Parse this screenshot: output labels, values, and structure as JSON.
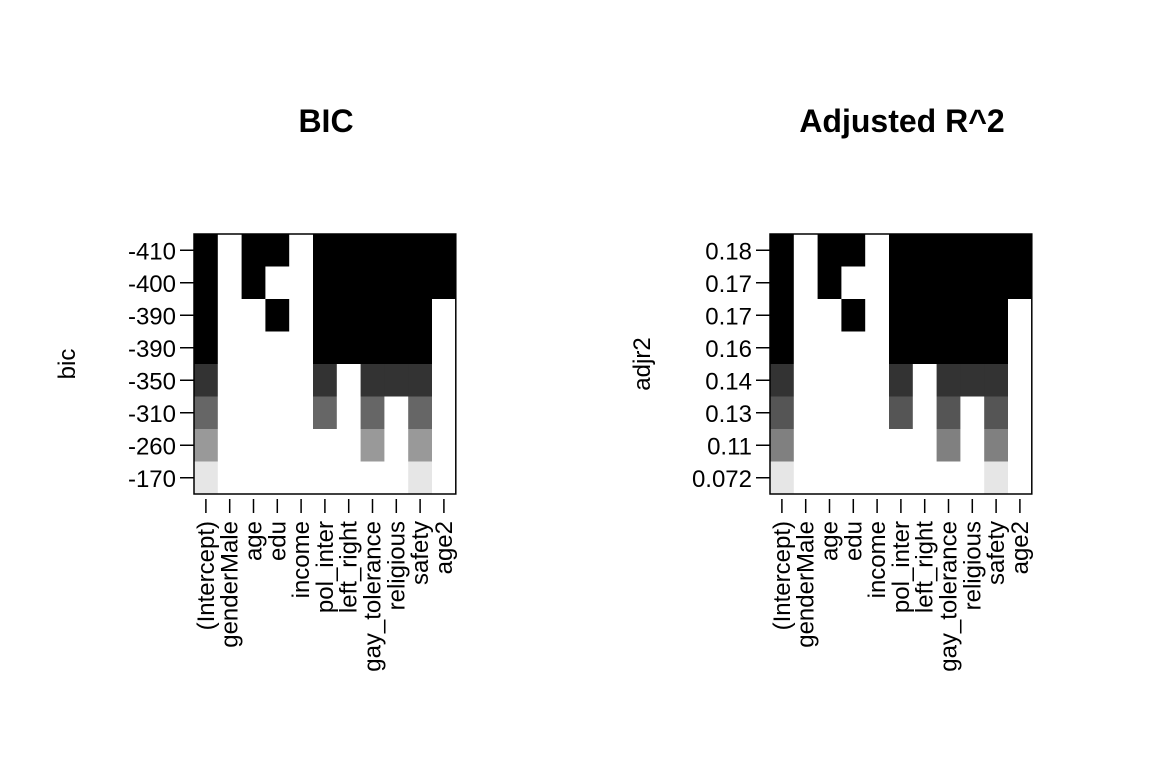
{
  "chart_data": [
    {
      "type": "heatmap",
      "title": "BIC",
      "ylabel": "bic",
      "xlabel": "",
      "variables": [
        "(Intercept)",
        "genderMale",
        "age",
        "edu",
        "income",
        "pol_inter",
        "left_right",
        "gay_tolerance",
        "religious",
        "safety",
        "age2"
      ],
      "row_labels": [
        "-410",
        "-400",
        "-390",
        "-390",
        "-350",
        "-310",
        "-260",
        "-170"
      ],
      "shades": [
        "#000000",
        "#000000",
        "#000000",
        "#000000",
        "#333333",
        "#666666",
        "#999999",
        "#e6e6e6"
      ],
      "inclusion": [
        [
          1,
          0,
          1,
          1,
          0,
          1,
          1,
          1,
          1,
          1,
          1
        ],
        [
          1,
          0,
          1,
          0,
          0,
          1,
          1,
          1,
          1,
          1,
          1
        ],
        [
          1,
          0,
          0,
          1,
          0,
          1,
          1,
          1,
          1,
          1,
          0
        ],
        [
          1,
          0,
          0,
          0,
          0,
          1,
          1,
          1,
          1,
          1,
          0
        ],
        [
          1,
          0,
          0,
          0,
          0,
          1,
          0,
          1,
          1,
          1,
          0
        ],
        [
          1,
          0,
          0,
          0,
          0,
          1,
          0,
          1,
          0,
          1,
          0
        ],
        [
          1,
          0,
          0,
          0,
          0,
          0,
          0,
          1,
          0,
          1,
          0
        ],
        [
          1,
          0,
          0,
          0,
          0,
          0,
          0,
          0,
          0,
          1,
          0
        ]
      ]
    },
    {
      "type": "heatmap",
      "title": "Adjusted R^2",
      "ylabel": "adjr2",
      "xlabel": "",
      "variables": [
        "(Intercept)",
        "genderMale",
        "age",
        "edu",
        "income",
        "pol_inter",
        "left_right",
        "gay_tolerance",
        "religious",
        "safety",
        "age2"
      ],
      "row_labels": [
        "0.18",
        "0.17",
        "0.17",
        "0.16",
        "0.14",
        "0.13",
        "0.11",
        "0.072"
      ],
      "shades": [
        "#000000",
        "#000000",
        "#000000",
        "#000000",
        "#333333",
        "#555555",
        "#808080",
        "#e6e6e6"
      ],
      "inclusion": [
        [
          1,
          0,
          1,
          1,
          0,
          1,
          1,
          1,
          1,
          1,
          1
        ],
        [
          1,
          0,
          1,
          0,
          0,
          1,
          1,
          1,
          1,
          1,
          1
        ],
        [
          1,
          0,
          0,
          1,
          0,
          1,
          1,
          1,
          1,
          1,
          0
        ],
        [
          1,
          0,
          0,
          0,
          0,
          1,
          1,
          1,
          1,
          1,
          0
        ],
        [
          1,
          0,
          0,
          0,
          0,
          1,
          0,
          1,
          1,
          1,
          0
        ],
        [
          1,
          0,
          0,
          0,
          0,
          1,
          0,
          1,
          0,
          1,
          0
        ],
        [
          1,
          0,
          0,
          0,
          0,
          0,
          0,
          1,
          0,
          1,
          0
        ],
        [
          1,
          0,
          0,
          0,
          0,
          0,
          0,
          0,
          0,
          1,
          0
        ]
      ]
    }
  ]
}
